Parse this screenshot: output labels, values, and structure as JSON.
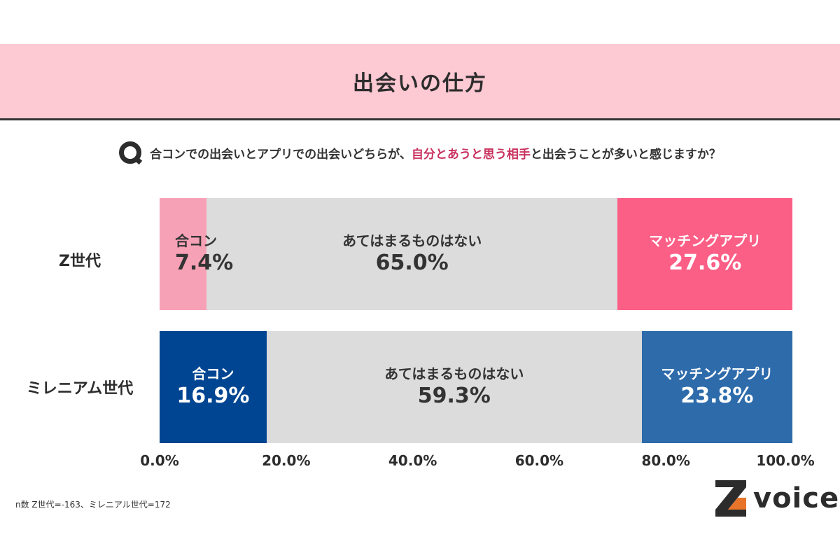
{
  "header": {
    "title": "出会いの仕方"
  },
  "question": {
    "icon": "q-badge-icon",
    "text_before": "合コンでの出会いとアプリでの出会いどちらが、",
    "text_highlight": "自分とあうと思う相手",
    "text_after": "と出会うことが多いと感じますか？",
    "highlight_color": "#c9305e"
  },
  "chart_data": {
    "type": "bar",
    "orientation": "horizontal-stacked-100",
    "categories": [
      "Z世代",
      "ミレニアム世代"
    ],
    "series": [
      {
        "name": "合コン",
        "values": [
          7.4,
          16.9
        ],
        "labels": [
          "7.4%",
          "16.9%"
        ],
        "colors": [
          "#f7a1b6",
          "#004592"
        ],
        "text_colors": [
          "#333333",
          "#ffffff"
        ]
      },
      {
        "name": "あてはまるものはない",
        "values": [
          65.0,
          59.3
        ],
        "labels": [
          "65.0%",
          "59.3%"
        ],
        "colors": [
          "#dcdcdc",
          "#dcdcdc"
        ],
        "text_colors": [
          "#333333",
          "#333333"
        ]
      },
      {
        "name": "マッチングアプリ",
        "values": [
          27.6,
          23.8
        ],
        "labels": [
          "27.6%",
          "23.8%"
        ],
        "colors": [
          "#fc5f86",
          "#2d6bab"
        ],
        "text_colors": [
          "#ffffff",
          "#ffffff"
        ]
      }
    ],
    "xlim": [
      0,
      100
    ],
    "x_ticks": [
      "0.0%",
      "20.0%",
      "40.0%",
      "60.0%",
      "80.0%",
      "100.0%"
    ],
    "grid": false,
    "legend": "none"
  },
  "footnote": "n数 Z世代=-163、ミレニアル世代=172",
  "logo": {
    "letter": "Z",
    "text": "voice",
    "icon": "z-voice-logo-icon",
    "accent": "#e8742a"
  }
}
